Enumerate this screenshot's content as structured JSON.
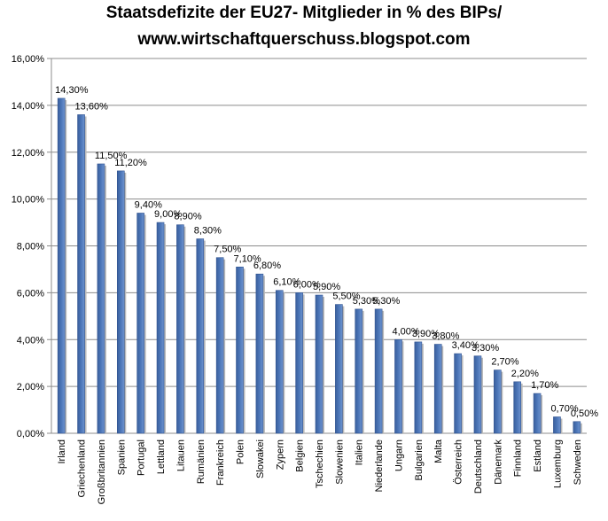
{
  "chart_data": {
    "type": "bar",
    "title_line1": "Staatsdefizite der EU27- Mitglieder in % des BIPs/",
    "title_line2": "www.wirtschaftquerschuss.blogspot.com",
    "xlabel": "",
    "ylabel": "",
    "ylim": [
      0,
      16
    ],
    "yticks": [
      "0,00%",
      "2,00%",
      "4,00%",
      "6,00%",
      "8,00%",
      "10,00%",
      "12,00%",
      "14,00%",
      "16,00%"
    ],
    "grid": true,
    "legend": "none",
    "bar_color": "#4a74b6",
    "categories": [
      "Irland",
      "Griechenland",
      "Großbritannien",
      "Spanien",
      "Portugal",
      "Lettland",
      "Litauen",
      "Rumänien",
      "Frankreich",
      "Polen",
      "Slowakei",
      "Zypern",
      "Belgien",
      "Tschechien",
      "Slowenien",
      "Italien",
      "Niederlande",
      "Ungarn",
      "Bulgarien",
      "Malta",
      "Österreich",
      "Deutschland",
      "Dänemark",
      "Finnland",
      "Estland",
      "Luxemburg",
      "Schweden"
    ],
    "values": [
      14.3,
      13.6,
      11.5,
      11.2,
      9.4,
      9.0,
      8.9,
      8.3,
      7.5,
      7.1,
      6.8,
      6.1,
      6.0,
      5.9,
      5.5,
      5.3,
      5.3,
      4.0,
      3.9,
      3.8,
      3.4,
      3.3,
      2.7,
      2.2,
      1.7,
      0.7,
      0.5
    ],
    "data_labels": [
      "14,30%",
      "13,60%",
      "11,50%",
      "11,20%",
      "9,40%",
      "9,00%",
      "8,90%",
      "8,30%",
      "7,50%",
      "7,10%",
      "6,80%",
      "6,10%",
      "6,00%",
      "5,90%",
      "5,50%",
      "5,30%",
      "5,30%",
      "4,00%",
      "3,90%",
      "3,80%",
      "3,40%",
      "3,30%",
      "2,70%",
      "2,20%",
      "1,70%",
      "0,70%",
      "0,50%"
    ]
  }
}
